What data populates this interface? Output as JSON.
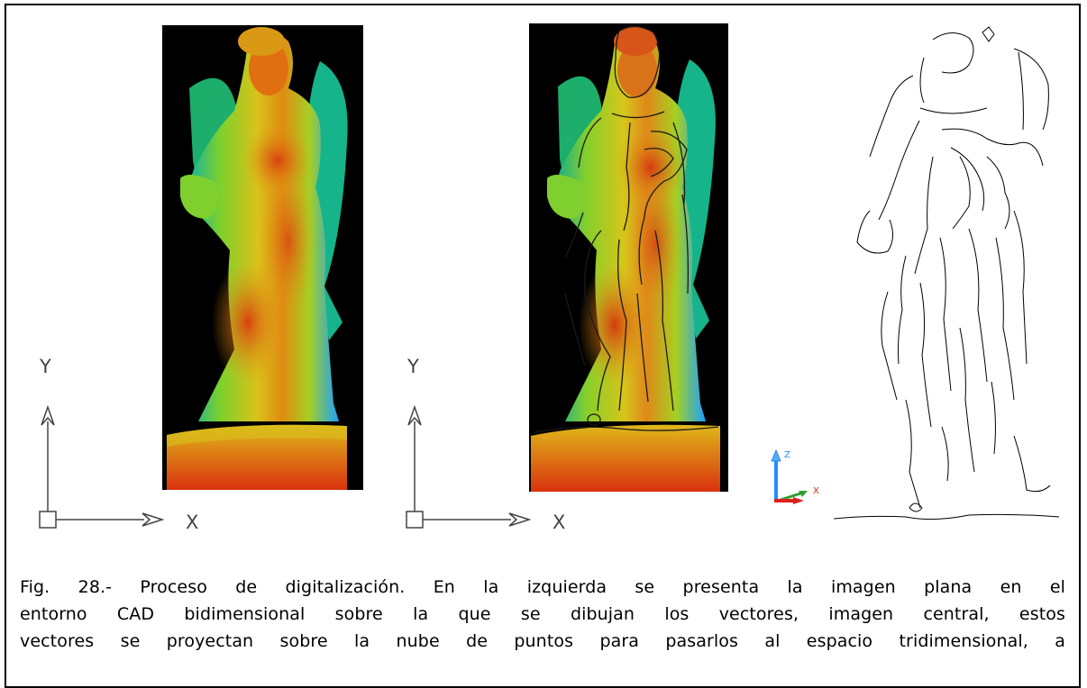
{
  "figure": {
    "caption_lines": [
      "Fig. 28.- Proceso de digitalización. En la izquierda se presenta la imagen plana en el",
      "entorno CAD bidimensional sobre la que se dibujan los vectores, imagen central, estos",
      "vectores se proyectan sobre la nube de puntos para pasarlos al espacio tridimensional, a"
    ]
  },
  "axis_2d": {
    "y_label": "Y",
    "x_label": "X"
  },
  "ucs_3d": {
    "z_label": "Z",
    "x_label": "X",
    "colors": {
      "z": "#1e90ff",
      "y": "#2e9e2e",
      "x": "#e0201b"
    }
  },
  "colors": {
    "panel_background": "#000000",
    "elevation_low": "#1aa0ff",
    "elevation_mid": "#9ccc2a",
    "elevation_high": "#d22d10",
    "vector_lines": "#000000"
  }
}
